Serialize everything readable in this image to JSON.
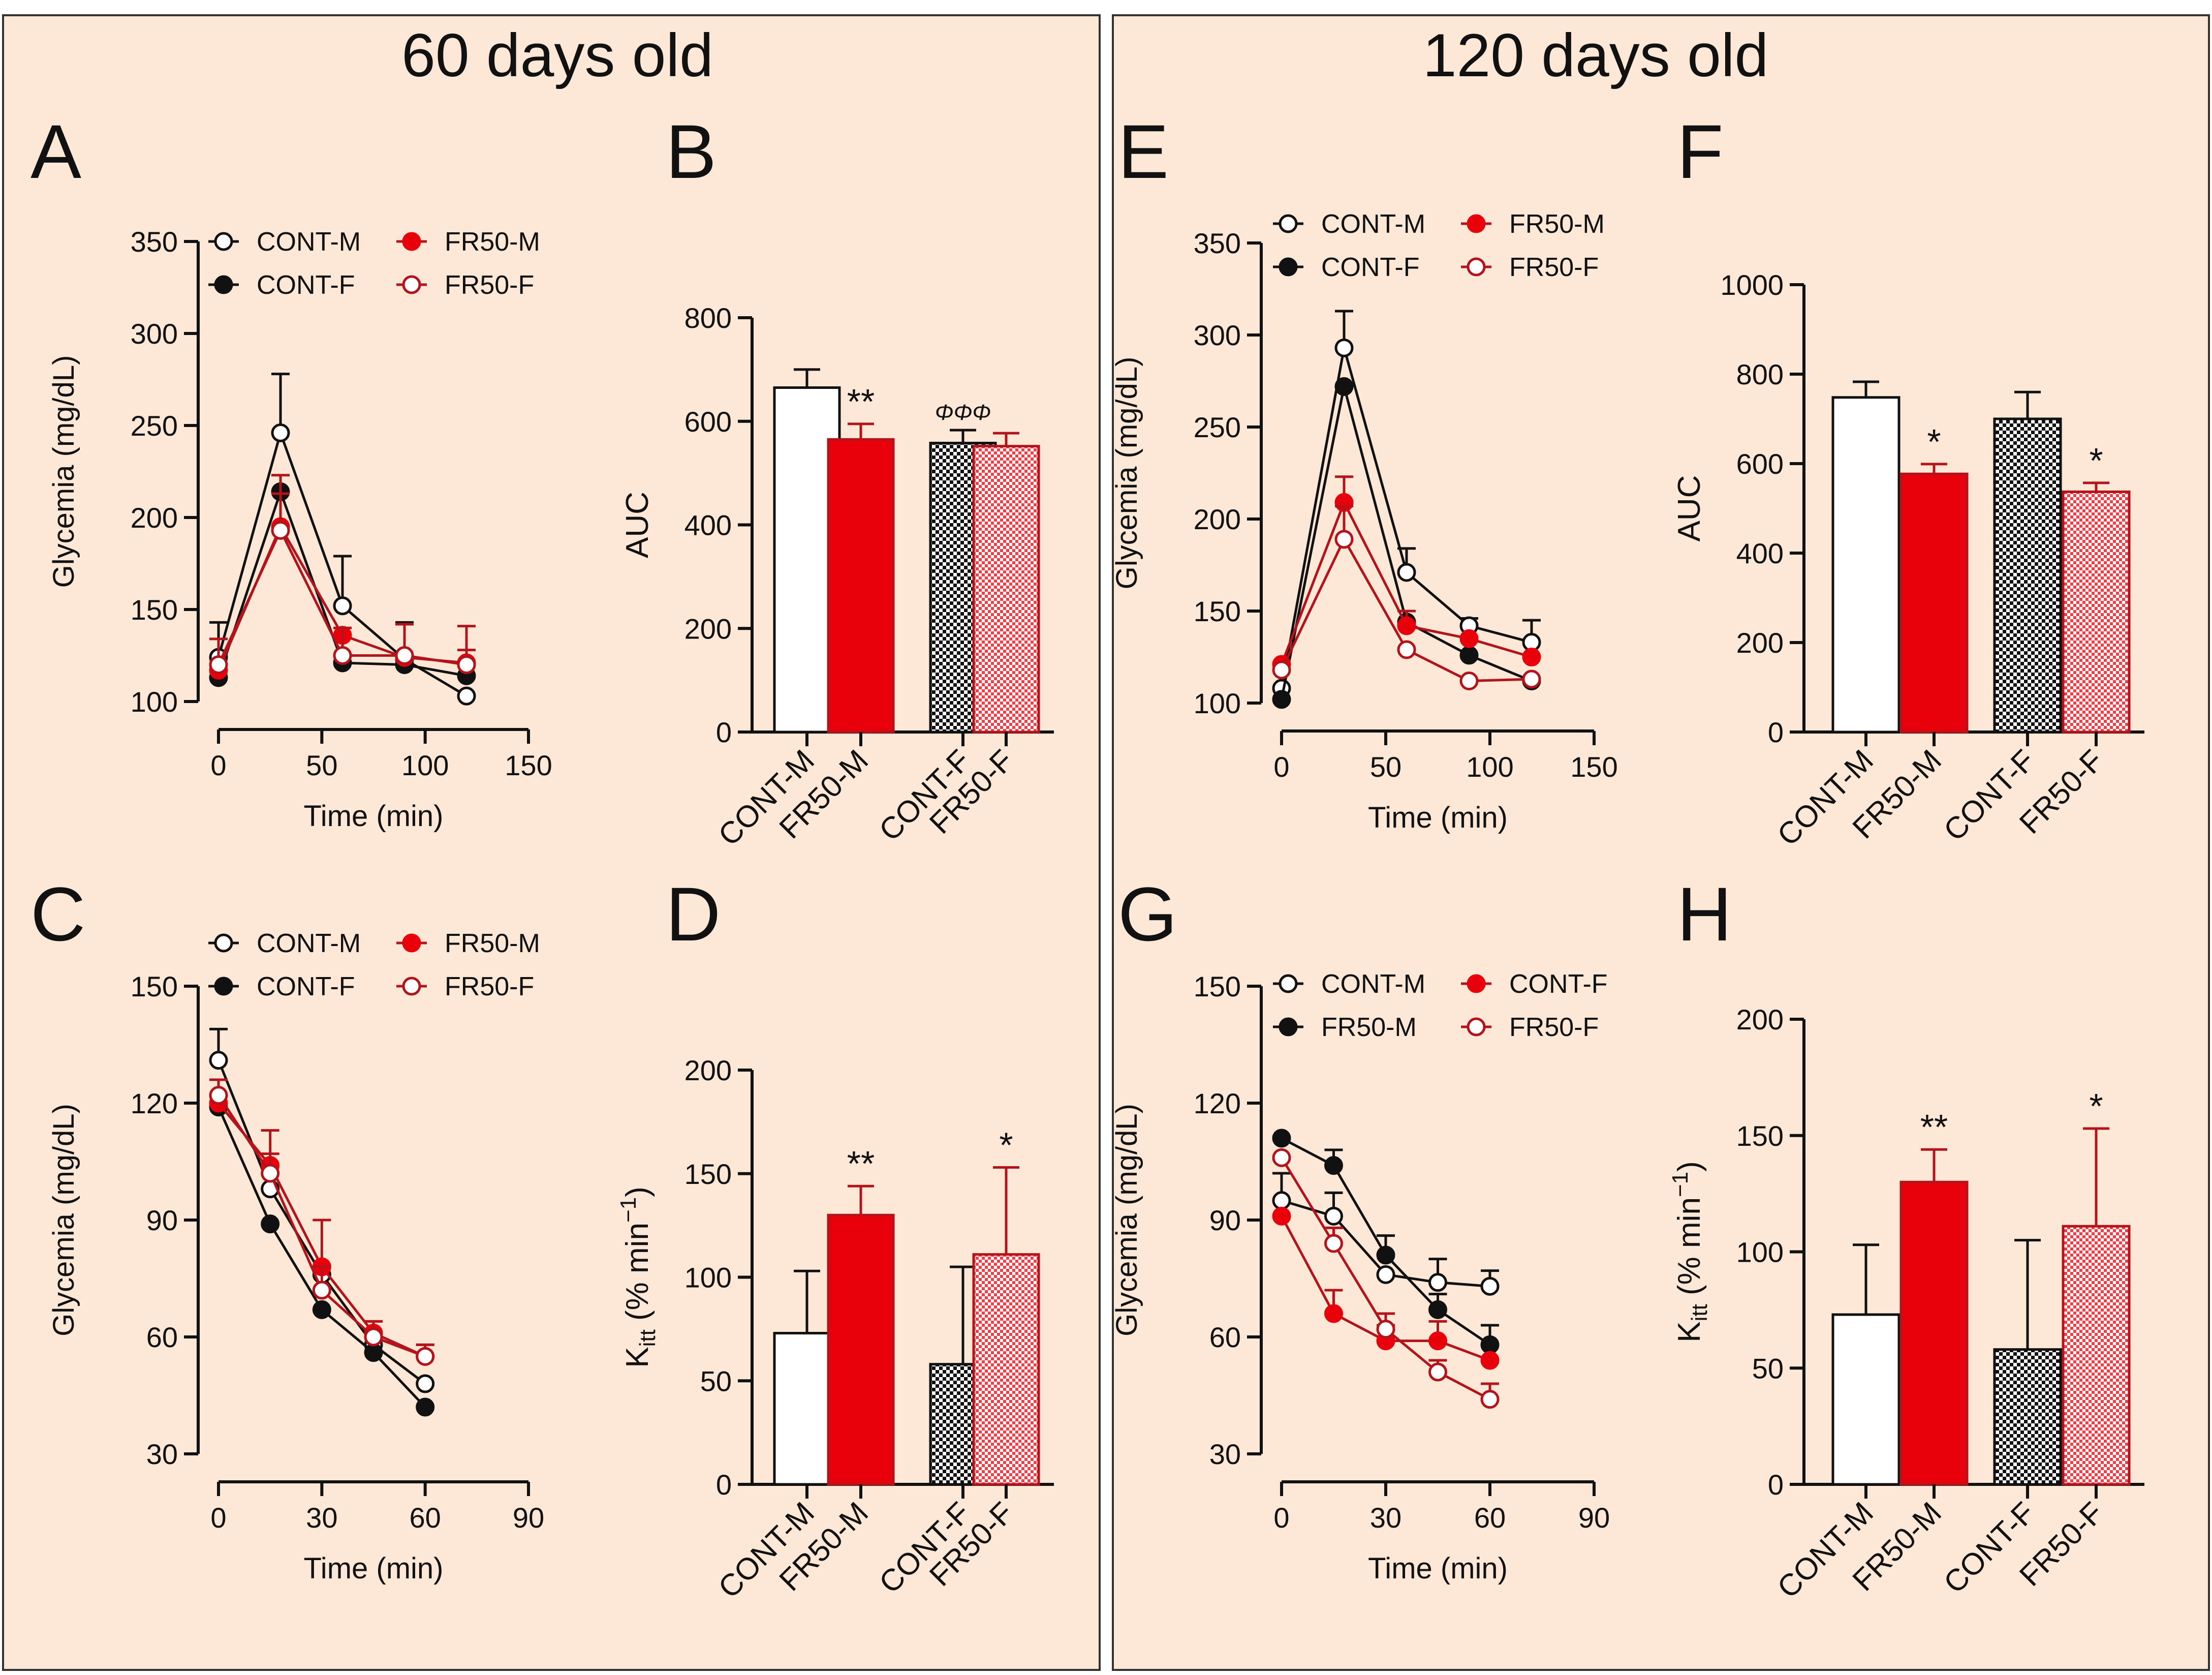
{
  "panels": [
    {
      "title": "60 days old"
    },
    {
      "title": "120 days old"
    }
  ],
  "colors": {
    "red": "#e8000b",
    "darkred": "#b3141c",
    "black": "#111111",
    "white": "#ffffff",
    "panel_bg": "#fde7d6"
  },
  "chart_data": [
    {
      "id": "A",
      "letter": "A",
      "type": "line",
      "xlabel": "Time (min)",
      "ylabel": "Glycemia (mg/dL)",
      "xlim": [
        0,
        150
      ],
      "ylim": [
        100,
        350
      ],
      "xticks": [
        0,
        50,
        100,
        150
      ],
      "yticks": [
        100,
        150,
        200,
        250,
        300,
        350
      ],
      "x": [
        0,
        30,
        60,
        90,
        120
      ],
      "series": [
        {
          "name": "CONT-M",
          "style": "white-black",
          "values": [
            124,
            246,
            152,
            123,
            103
          ],
          "err": [
            19,
            32,
            27,
            20,
            0
          ]
        },
        {
          "name": "CONT-F",
          "style": "black",
          "values": [
            113,
            214,
            121,
            120,
            114
          ],
          "err": [
            0,
            0,
            0,
            0,
            0
          ]
        },
        {
          "name": "FR50-M",
          "style": "red",
          "values": [
            117,
            195,
            136,
            124,
            121
          ],
          "err": [
            0,
            28,
            0,
            18,
            20
          ]
        },
        {
          "name": "FR50-F",
          "style": "white-red",
          "values": [
            120,
            193,
            125,
            125,
            120
          ],
          "err": [
            14,
            20,
            15,
            0,
            8
          ]
        }
      ],
      "legend": {
        "order": [
          "CONT-M",
          "FR50-M",
          "CONT-F",
          "FR50-F"
        ]
      }
    },
    {
      "id": "B",
      "letter": "B",
      "type": "bar",
      "ylabel": "AUC",
      "ylim": [
        0,
        800
      ],
      "yticks": [
        0,
        200,
        400,
        600,
        800
      ],
      "categories": [
        "CONT-M",
        "FR50-M",
        "CONT-F",
        "FR50-F"
      ],
      "bar_styles": [
        "white",
        "red",
        "checker",
        "pink"
      ],
      "values": [
        665,
        565,
        558,
        552
      ],
      "err": [
        35,
        30,
        25,
        25
      ],
      "annotations": [
        "",
        "**",
        "ΦΦΦ",
        ""
      ]
    },
    {
      "id": "C",
      "letter": "C",
      "type": "line",
      "xlabel": "Time (min)",
      "ylabel": "Glycemia (mg/dL)",
      "xlim": [
        0,
        90
      ],
      "ylim": [
        30,
        150
      ],
      "xticks": [
        0,
        30,
        60,
        90
      ],
      "yticks": [
        30,
        60,
        90,
        120,
        150
      ],
      "x": [
        0,
        15,
        30,
        45,
        60
      ],
      "series": [
        {
          "name": "CONT-M",
          "style": "white-black",
          "values": [
            131,
            98,
            76,
            58,
            48
          ],
          "err": [
            8,
            0,
            0,
            0,
            0
          ]
        },
        {
          "name": "CONT-F",
          "style": "black",
          "values": [
            119,
            89,
            67,
            56,
            42
          ],
          "err": [
            0,
            0,
            0,
            0,
            0
          ]
        },
        {
          "name": "FR50-M",
          "style": "red",
          "values": [
            120,
            104,
            78,
            61,
            55
          ],
          "err": [
            0,
            9,
            12,
            3,
            3
          ]
        },
        {
          "name": "FR50-F",
          "style": "white-red",
          "values": [
            122,
            102,
            72,
            60,
            55
          ],
          "err": [
            4,
            5,
            6,
            4,
            3
          ]
        }
      ],
      "legend": {
        "order": [
          "CONT-M",
          "FR50-M",
          "CONT-F",
          "FR50-F"
        ]
      }
    },
    {
      "id": "D",
      "letter": "D",
      "type": "bar",
      "ylabel": "Kitt (% min−1)",
      "ylabel_main": "K",
      "ylabel_sub": "itt",
      "ylabel_rest": " (% min",
      "ylabel_sup": "−1",
      "ylabel_end": ")",
      "ylim": [
        0,
        200
      ],
      "yticks": [
        0,
        50,
        100,
        150,
        200
      ],
      "categories": [
        "CONT-M",
        "FR50-M",
        "CONT-F",
        "FR50-F"
      ],
      "bar_styles": [
        "white",
        "red",
        "checker",
        "pink"
      ],
      "values": [
        73,
        130,
        58,
        111
      ],
      "err": [
        30,
        14,
        47,
        42
      ],
      "annotations": [
        "",
        "**",
        "",
        "*"
      ]
    },
    {
      "id": "E",
      "letter": "E",
      "type": "line",
      "xlabel": "Time (min)",
      "ylabel": "Glycemia (mg/dL)",
      "xlim": [
        0,
        150
      ],
      "ylim": [
        100,
        350
      ],
      "xticks": [
        0,
        50,
        100,
        150
      ],
      "yticks": [
        100,
        150,
        200,
        250,
        300,
        350
      ],
      "x": [
        0,
        30,
        60,
        90,
        120
      ],
      "series": [
        {
          "name": "CONT-M",
          "style": "white-black",
          "values": [
            108,
            293,
            171,
            142,
            133
          ],
          "err": [
            0,
            20,
            13,
            4,
            12
          ]
        },
        {
          "name": "CONT-F",
          "style": "black",
          "values": [
            102,
            272,
            144,
            126,
            112
          ],
          "err": [
            0,
            0,
            0,
            0,
            0
          ]
        },
        {
          "name": "FR50-M",
          "style": "red",
          "values": [
            121,
            209,
            142,
            135,
            125
          ],
          "err": [
            0,
            14,
            8,
            0,
            0
          ]
        },
        {
          "name": "FR50-F",
          "style": "white-red",
          "values": [
            118,
            189,
            129,
            112,
            113
          ],
          "err": [
            0,
            18,
            0,
            0,
            0
          ]
        }
      ],
      "legend": {
        "order": [
          "CONT-M",
          "FR50-M",
          "CONT-F",
          "FR50-F"
        ]
      }
    },
    {
      "id": "F",
      "letter": "F",
      "type": "bar",
      "ylabel": "AUC",
      "ylim": [
        0,
        1000
      ],
      "yticks": [
        0,
        200,
        400,
        600,
        800,
        1000
      ],
      "categories": [
        "CONT-M",
        "FR50-M",
        "CONT-F",
        "FR50-F"
      ],
      "bar_styles": [
        "white",
        "red",
        "checker",
        "pink"
      ],
      "values": [
        748,
        577,
        700,
        537
      ],
      "err": [
        35,
        22,
        60,
        20
      ],
      "annotations": [
        "",
        "*",
        "",
        "*"
      ]
    },
    {
      "id": "G",
      "letter": "G",
      "type": "line",
      "xlabel": "Time (min)",
      "ylabel": "Glycemia (mg/dL)",
      "xlim": [
        0,
        90
      ],
      "ylim": [
        30,
        150
      ],
      "xticks": [
        0,
        30,
        60,
        90
      ],
      "yticks": [
        30,
        60,
        90,
        120,
        150
      ],
      "x": [
        0,
        15,
        30,
        45,
        60
      ],
      "series": [
        {
          "name": "CONT-M",
          "style": "white-black",
          "values": [
            95,
            91,
            76,
            74,
            73
          ],
          "err": [
            7,
            6,
            0,
            6,
            4
          ]
        },
        {
          "name": "FR50-M",
          "style": "black",
          "values": [
            111,
            104,
            81,
            67,
            58
          ],
          "err": [
            0,
            4,
            5,
            4,
            5
          ]
        },
        {
          "name": "CONT-F",
          "style": "red",
          "values": [
            91,
            66,
            59,
            59,
            54
          ],
          "err": [
            0,
            6,
            4,
            5,
            0
          ]
        },
        {
          "name": "FR50-F",
          "style": "white-red",
          "values": [
            106,
            84,
            62,
            51,
            44
          ],
          "err": [
            0,
            4,
            4,
            3,
            4
          ]
        }
      ],
      "legend": {
        "order": [
          "CONT-M",
          "CONT-F",
          "FR50-M",
          "FR50-F"
        ]
      }
    },
    {
      "id": "H",
      "letter": "H",
      "type": "bar",
      "ylabel": "Kitt (% min−1)",
      "ylabel_main": "K",
      "ylabel_sub": "itt",
      "ylabel_rest": " (% min",
      "ylabel_sup": "−1",
      "ylabel_end": ")",
      "ylim": [
        0,
        200
      ],
      "yticks": [
        0,
        50,
        100,
        150,
        200
      ],
      "categories": [
        "CONT-M",
        "FR50-M",
        "CONT-F",
        "FR50-F"
      ],
      "bar_styles": [
        "white",
        "red",
        "checker",
        "pink"
      ],
      "values": [
        73,
        130,
        58,
        111
      ],
      "err": [
        30,
        14,
        47,
        42
      ],
      "annotations": [
        "",
        "**",
        "",
        "*"
      ]
    }
  ]
}
